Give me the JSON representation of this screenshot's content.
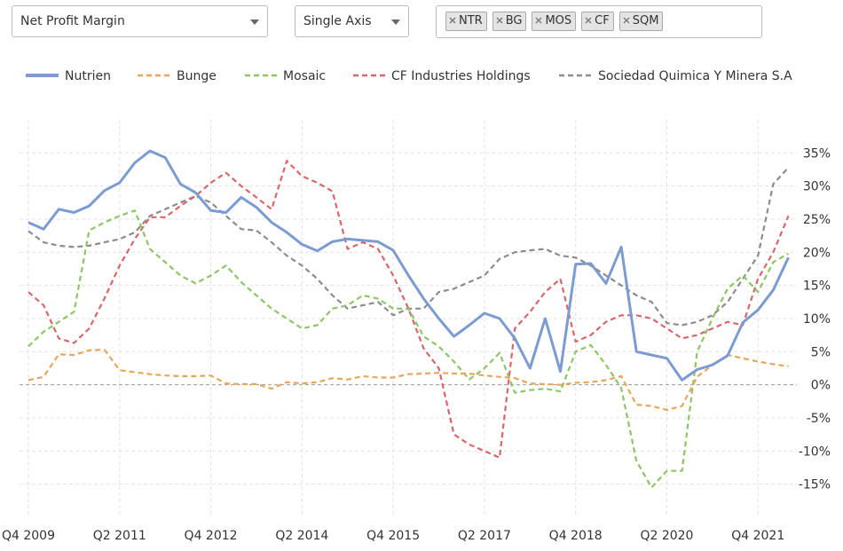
{
  "controls": {
    "metric": "Net Profit Margin",
    "axis": "Single Axis",
    "tickers": [
      "NTR",
      "BG",
      "MOS",
      "CF",
      "SQM"
    ]
  },
  "chart_data": {
    "type": "line",
    "categories": [
      "Q4 2009",
      null,
      null,
      null,
      null,
      null,
      "Q2 2011",
      null,
      null,
      null,
      null,
      null,
      "Q4 2012",
      null,
      null,
      null,
      null,
      null,
      "Q2 2014",
      null,
      null,
      null,
      null,
      null,
      "Q4 2015",
      null,
      null,
      null,
      null,
      null,
      "Q2 2017",
      null,
      null,
      null,
      null,
      null,
      "Q4 2018",
      null,
      null,
      null,
      null,
      null,
      "Q2 2020",
      null,
      null,
      null,
      null,
      null,
      "Q4 2021",
      null,
      null
    ],
    "ylim": [
      -20,
      40
    ],
    "yticks": [
      {
        "value": -15,
        "label": "-15%"
      },
      {
        "value": -10,
        "label": "-10%"
      },
      {
        "value": -5,
        "label": "-5%"
      },
      {
        "value": 0,
        "label": "0%"
      },
      {
        "value": 5,
        "label": "5%"
      },
      {
        "value": 10,
        "label": "10%"
      },
      {
        "value": 15,
        "label": "15%"
      },
      {
        "value": 20,
        "label": "20%"
      },
      {
        "value": 25,
        "label": "25%"
      },
      {
        "value": 30,
        "label": "30%"
      },
      {
        "value": 35,
        "label": "35%"
      }
    ],
    "grid": true,
    "legend": "top",
    "series": [
      {
        "name": "Nutrien",
        "color": "#7b9bd1",
        "values": [
          24.5,
          23.5,
          26.5,
          26,
          27,
          29.3,
          30.5,
          33.5,
          35.3,
          34.3,
          30.3,
          29,
          26.3,
          26,
          28.3,
          26.8,
          24.5,
          23,
          21.2,
          20.2,
          21.6,
          22,
          21.8,
          21.6,
          20.3,
          16.5,
          13,
          10,
          7.3,
          9,
          10.8,
          10,
          7,
          2.5,
          10,
          2,
          18.2,
          18.3,
          15.3,
          20.8,
          5,
          4.5,
          4,
          0.7,
          2.3,
          3,
          4.4,
          9.4,
          11.3,
          14.3,
          19.2
        ]
      },
      {
        "name": "Bunge",
        "color": "#e8a65a",
        "values": [
          0.7,
          1.2,
          4.6,
          4.5,
          5.2,
          5.3,
          2.2,
          1.9,
          1.6,
          1.4,
          1.3,
          1.3,
          1.4,
          0.2,
          0.1,
          0.1,
          -0.6,
          0.4,
          0.2,
          0.4,
          1.0,
          0.8,
          1.3,
          1.1,
          1.1,
          1.6,
          1.7,
          1.8,
          1.7,
          1.7,
          1.4,
          1.2,
          1.0,
          0.2,
          0.1,
          0.0,
          0.3,
          0.4,
          0.7,
          1.3,
          -3.0,
          -3.2,
          -3.8,
          -3.2,
          1.2,
          3.0,
          4.5,
          4.0,
          3.5,
          3.1,
          2.8
        ]
      },
      {
        "name": "Mosaic",
        "color": "#8cc665",
        "values": [
          5.8,
          8,
          9.5,
          11,
          23.3,
          24.5,
          25.5,
          26.3,
          20.5,
          18.5,
          16.5,
          15.3,
          16.5,
          18,
          15.5,
          13.5,
          11.5,
          10,
          8.5,
          9,
          11.5,
          12,
          13.5,
          13,
          11.5,
          11.5,
          7.3,
          5.8,
          3.5,
          0.8,
          2.5,
          4.8,
          -1.2,
          -0.8,
          -0.6,
          -1,
          5,
          6,
          3,
          -0.5,
          -11.5,
          -15.5,
          -13,
          -13,
          5,
          10,
          14.5,
          16.5,
          14,
          18.5,
          19.8
        ]
      },
      {
        "name": "CF Industries Holdings",
        "color": "#d9666b",
        "values": [
          14,
          12,
          7,
          6.3,
          8.5,
          13,
          18,
          22,
          25.3,
          25.3,
          27,
          28.5,
          30.5,
          32,
          30,
          28.3,
          26.5,
          33.8,
          31.5,
          30.5,
          29.2,
          20.5,
          21.5,
          20.5,
          16.5,
          11.5,
          5.5,
          2.5,
          -7.5,
          -9,
          -10,
          -11,
          8.5,
          11,
          14,
          16,
          6.5,
          7.5,
          9.5,
          10.5,
          10.5,
          10,
          8.5,
          7,
          7.5,
          8.5,
          9.5,
          9,
          16,
          20,
          25.5
        ]
      },
      {
        "name": "Sociedad Quimica Y Minera S.A",
        "color": "#8c8c8c",
        "values": [
          23.2,
          21.5,
          21,
          20.8,
          21,
          21.5,
          22,
          23,
          25.5,
          26.5,
          27.5,
          28.5,
          27.5,
          25.5,
          23.5,
          23.3,
          21.5,
          19.5,
          18,
          16,
          13.5,
          11.5,
          12,
          12.5,
          10.5,
          11.5,
          11.5,
          14,
          14.5,
          15.5,
          16.5,
          19,
          20,
          20.3,
          20.5,
          19.5,
          19.2,
          18,
          16.5,
          15,
          13.5,
          12.5,
          9.3,
          9,
          9.5,
          10.5,
          12.5,
          16,
          19.5,
          30.3,
          32.8
        ]
      }
    ]
  }
}
